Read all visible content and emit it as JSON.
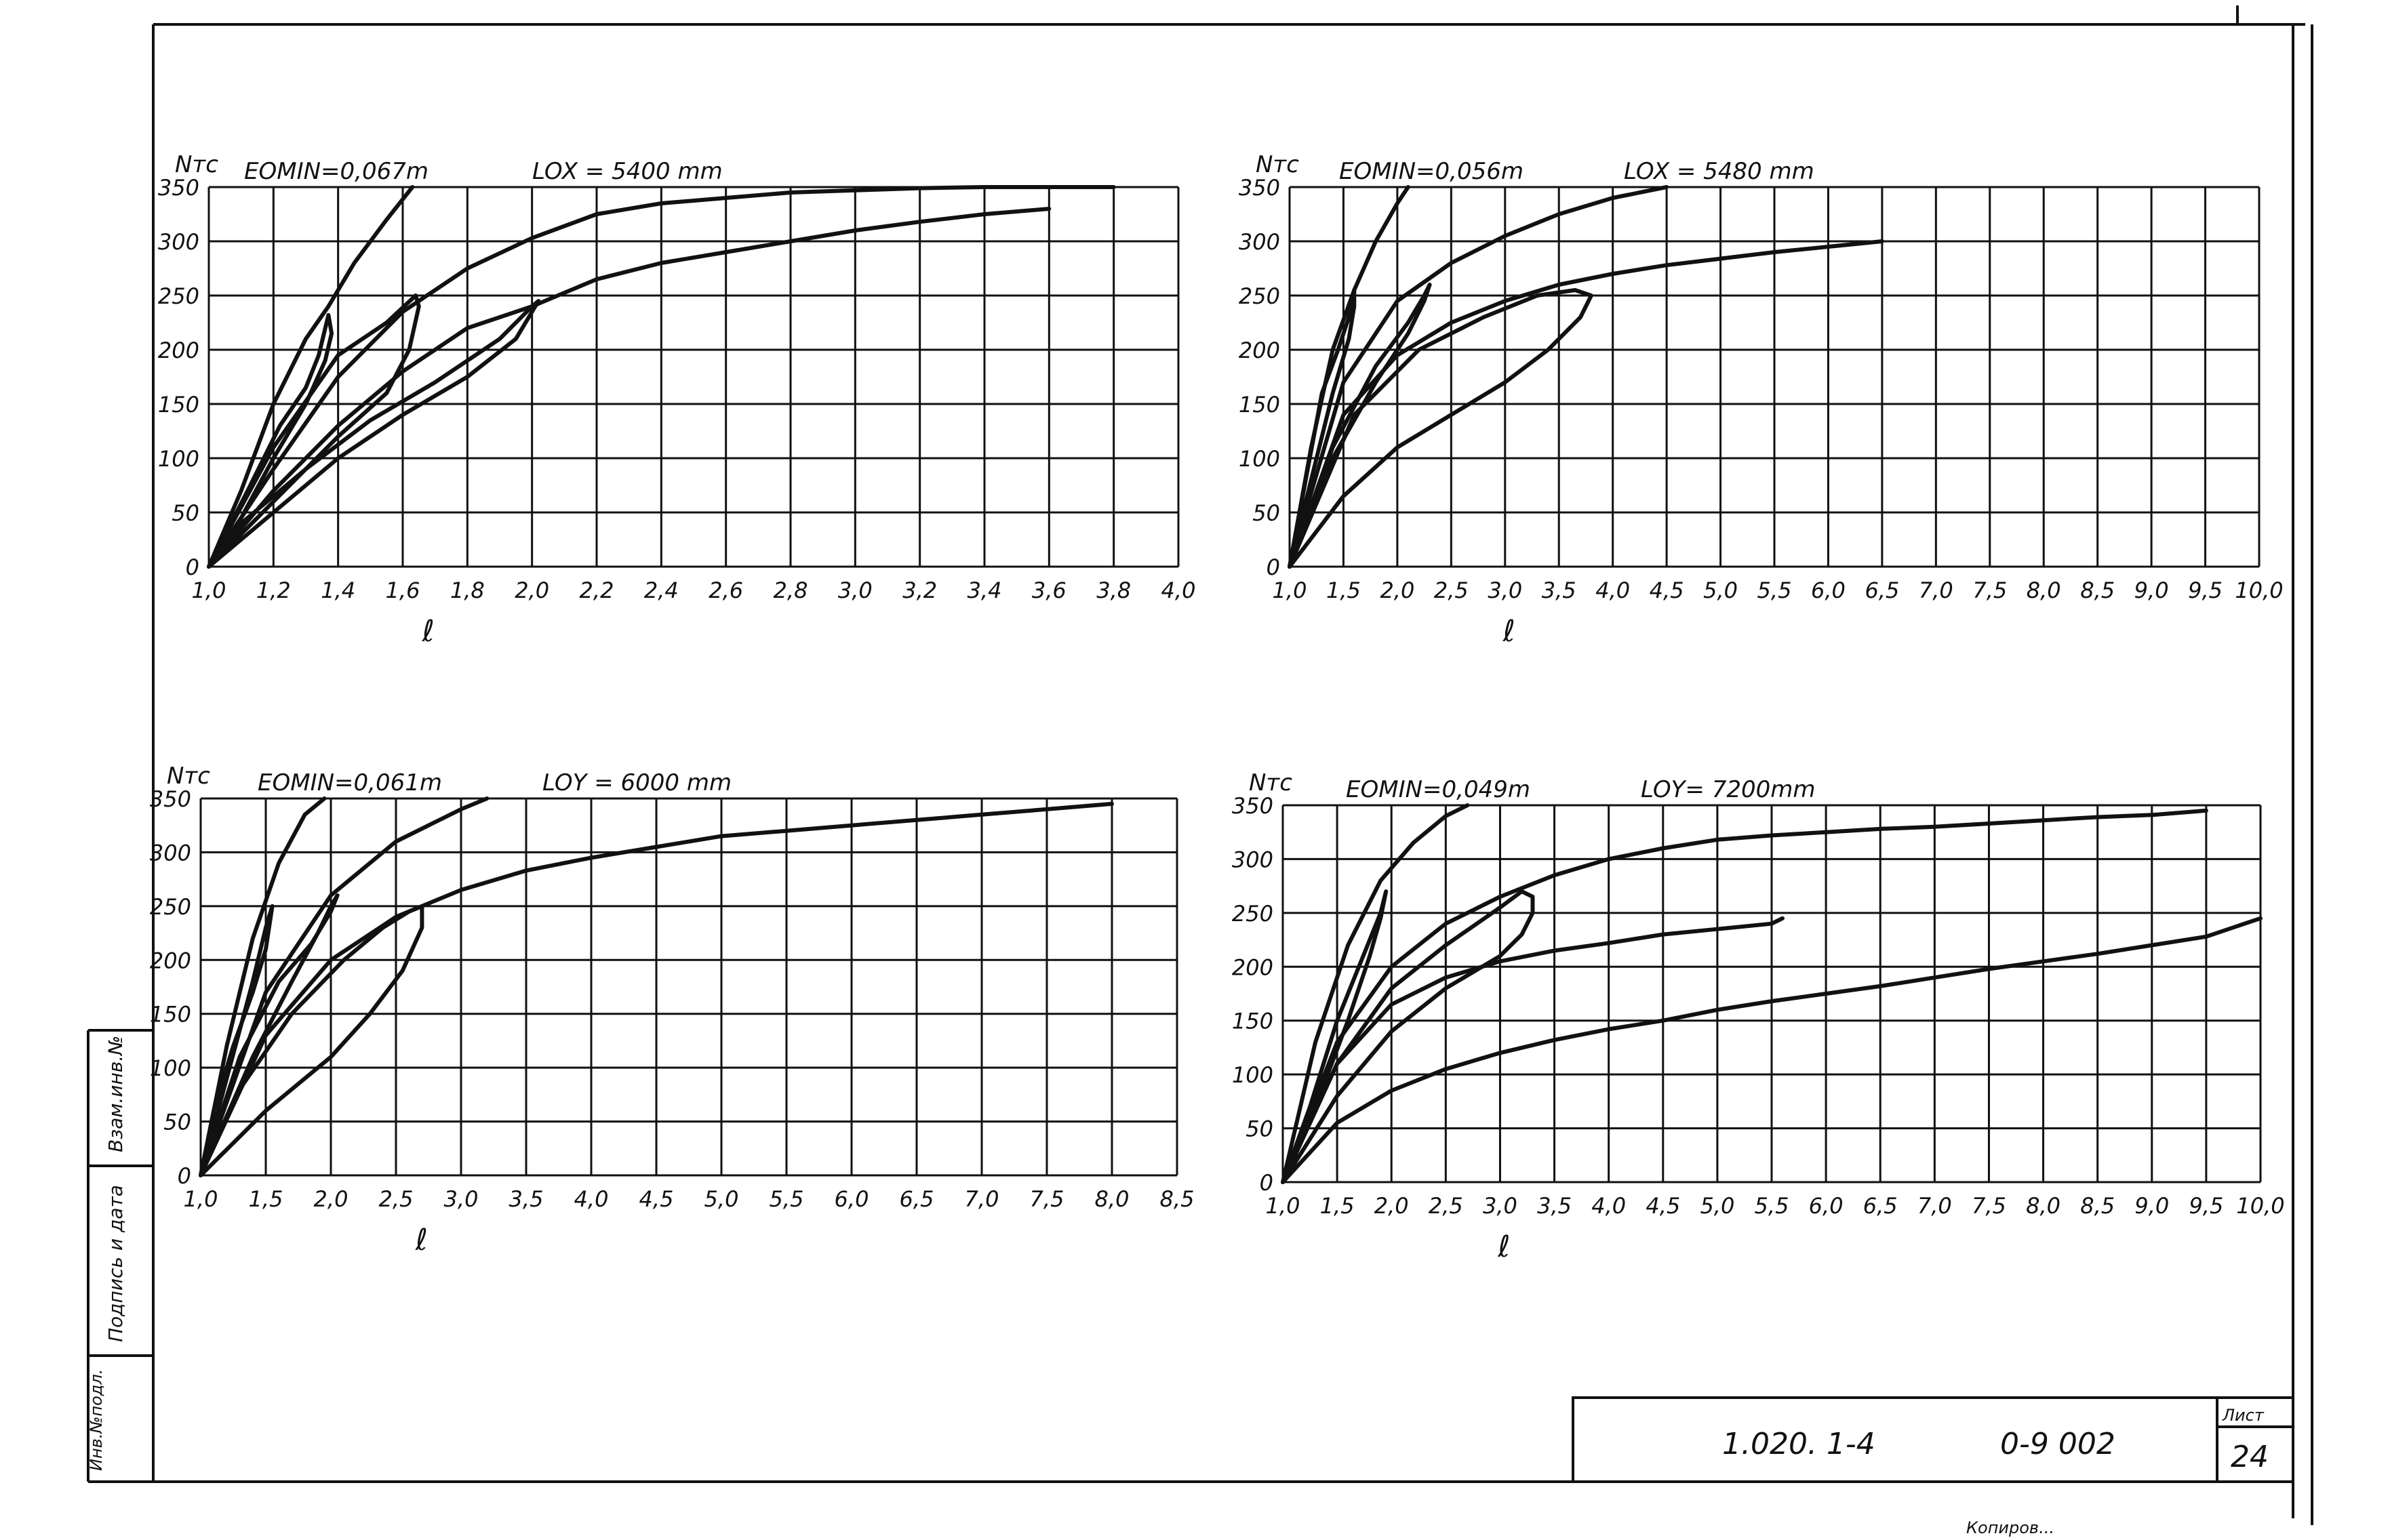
{
  "chart_data": [
    {
      "type": "line",
      "title": "",
      "ylabel": "Nтс",
      "xlabel": "ℓ",
      "annotations": [
        "EOMIN=0,067m",
        "LOX = 5400 mm"
      ],
      "x_ticks": [
        "1,0",
        "1,2",
        "1,4",
        "1,6",
        "1,8",
        "2,0",
        "2,2",
        "2,4",
        "2,6",
        "2,8",
        "3,0",
        "3,2",
        "3,4",
        "3,6",
        "3,8",
        "4,0"
      ],
      "y_ticks": [
        "0",
        "50",
        "100",
        "150",
        "200",
        "250",
        "300",
        "350"
      ],
      "xlim": [
        1.0,
        4.0
      ],
      "ylim": [
        0,
        350
      ],
      "grid": true,
      "series": [
        {
          "x": [
            1.0,
            1.1,
            1.2,
            1.3,
            1.37,
            1.45,
            1.55,
            1.63
          ],
          "y": [
            0,
            70,
            150,
            210,
            240,
            280,
            320,
            350
          ]
        },
        {
          "x": [
            1.0,
            1.1,
            1.2,
            1.3,
            1.36,
            1.38,
            1.37,
            1.34,
            1.3,
            1.22,
            1.12,
            1.0
          ],
          "y": [
            0,
            45,
            100,
            150,
            190,
            215,
            232,
            195,
            165,
            130,
            70,
            0
          ]
        },
        {
          "x": [
            1.0,
            1.2,
            1.4,
            1.6,
            1.8,
            2.0,
            2.2,
            2.4,
            2.6,
            2.8,
            3.0,
            3.2,
            3.4,
            3.6,
            3.8
          ],
          "y": [
            0,
            90,
            175,
            235,
            275,
            303,
            325,
            335,
            340,
            345,
            347,
            349,
            350,
            350,
            350
          ]
        },
        {
          "x": [
            1.0,
            1.2,
            1.4,
            1.55,
            1.62,
            1.65,
            1.64,
            1.55,
            1.4,
            1.2,
            1.0
          ],
          "y": [
            0,
            60,
            120,
            160,
            200,
            240,
            250,
            225,
            195,
            110,
            0
          ]
        },
        {
          "x": [
            1.0,
            1.2,
            1.4,
            1.6,
            1.8,
            2.0,
            2.2,
            2.4,
            2.6,
            2.8,
            3.0,
            3.2,
            3.4,
            3.6
          ],
          "y": [
            0,
            70,
            130,
            180,
            220,
            240,
            265,
            280,
            290,
            300,
            310,
            318,
            325,
            330
          ]
        },
        {
          "x": [
            1.0,
            1.2,
            1.4,
            1.6,
            1.8,
            1.95,
            2.0,
            2.02,
            2.0,
            1.9,
            1.7,
            1.5,
            1.3,
            1.1,
            1.0
          ],
          "y": [
            0,
            50,
            100,
            140,
            175,
            210,
            235,
            245,
            240,
            210,
            170,
            135,
            90,
            40,
            0
          ]
        }
      ]
    },
    {
      "type": "line",
      "title": "",
      "ylabel": "Nтс",
      "xlabel": "ℓ",
      "annotations": [
        "EOMIN=0,056m",
        "LOX = 5480 mm"
      ],
      "x_ticks": [
        "1,0",
        "1,5",
        "2,0",
        "2,5",
        "3,0",
        "3,5",
        "4,0",
        "4,5",
        "5,0",
        "5,5",
        "6,0",
        "6,5",
        "7,0",
        "7,5",
        "8,0",
        "8,5",
        "9,0",
        "9,5",
        "10,0"
      ],
      "y_ticks": [
        "0",
        "50",
        "100",
        "150",
        "200",
        "250",
        "300",
        "350"
      ],
      "xlim": [
        1.0,
        10.0
      ],
      "ylim": [
        0,
        350
      ],
      "grid": true,
      "series": [
        {
          "x": [
            1.0,
            1.2,
            1.4,
            1.6,
            1.8,
            2.0,
            2.1
          ],
          "y": [
            0,
            110,
            200,
            255,
            300,
            335,
            350
          ]
        },
        {
          "x": [
            1.0,
            1.2,
            1.4,
            1.55,
            1.6,
            1.6,
            1.55,
            1.45,
            1.3,
            1.15,
            1.0
          ],
          "y": [
            0,
            80,
            160,
            210,
            240,
            255,
            230,
            200,
            160,
            80,
            0
          ]
        },
        {
          "x": [
            1.0,
            1.5,
            2.0,
            2.5,
            3.0,
            3.5,
            4.0,
            4.5
          ],
          "y": [
            0,
            170,
            245,
            280,
            305,
            325,
            340,
            350
          ]
        },
        {
          "x": [
            1.0,
            1.4,
            1.8,
            2.1,
            2.25,
            2.3,
            2.25,
            2.1,
            1.8,
            1.4,
            1.0
          ],
          "y": [
            0,
            100,
            170,
            215,
            245,
            260,
            250,
            225,
            185,
            110,
            0
          ]
        },
        {
          "x": [
            1.0,
            1.5,
            2.0,
            2.5,
            3.0,
            3.5,
            4.0,
            4.5,
            5.0,
            5.5,
            6.0,
            6.5
          ],
          "y": [
            0,
            140,
            195,
            225,
            245,
            260,
            270,
            278,
            284,
            290,
            295,
            300
          ]
        },
        {
          "x": [
            1.0,
            1.5,
            2.0,
            2.5,
            3.0,
            3.4,
            3.7,
            3.8,
            3.65,
            3.3,
            2.8,
            2.2,
            1.6,
            1.0
          ],
          "y": [
            0,
            65,
            110,
            140,
            170,
            200,
            230,
            250,
            255,
            250,
            230,
            200,
            140,
            0
          ]
        }
      ]
    },
    {
      "type": "line",
      "title": "",
      "ylabel": "Nтс",
      "xlabel": "ℓ",
      "annotations": [
        "EOMIN=0,061m",
        "LOY = 6000 mm"
      ],
      "x_ticks": [
        "1,0",
        "1,5",
        "2,0",
        "2,5",
        "3,0",
        "3,5",
        "4,0",
        "4,5",
        "5,0",
        "5,5",
        "6,0",
        "6,5",
        "7,0",
        "7,5",
        "8,0",
        "8,5"
      ],
      "y_ticks": [
        "0",
        "50",
        "100",
        "150",
        "200",
        "250",
        "300",
        "350"
      ],
      "xlim": [
        1.0,
        8.5
      ],
      "ylim": [
        0,
        350
      ],
      "grid": true,
      "series": [
        {
          "x": [
            1.0,
            1.2,
            1.4,
            1.6,
            1.8,
            1.95
          ],
          "y": [
            0,
            120,
            220,
            290,
            335,
            350
          ]
        },
        {
          "x": [
            1.0,
            1.2,
            1.4,
            1.5,
            1.55,
            1.5,
            1.4,
            1.25,
            1.1,
            1.0
          ],
          "y": [
            0,
            90,
            180,
            230,
            250,
            210,
            170,
            120,
            60,
            0
          ]
        },
        {
          "x": [
            1.0,
            1.5,
            2.0,
            2.5,
            3.0,
            3.2
          ],
          "y": [
            0,
            170,
            260,
            310,
            340,
            350
          ]
        },
        {
          "x": [
            1.0,
            1.4,
            1.7,
            1.9,
            2.0,
            2.05,
            2.0,
            1.85,
            1.6,
            1.3,
            1.0
          ],
          "y": [
            0,
            110,
            180,
            225,
            250,
            260,
            245,
            215,
            180,
            110,
            0
          ]
        },
        {
          "x": [
            1.0,
            1.5,
            2.0,
            2.5,
            3.0,
            3.5,
            4.0,
            4.5,
            5.0,
            5.5,
            6.0,
            6.5,
            7.0,
            7.5,
            8.0
          ],
          "y": [
            0,
            130,
            200,
            240,
            265,
            283,
            295,
            305,
            315,
            320,
            325,
            330,
            335,
            340,
            345
          ]
        },
        {
          "x": [
            1.0,
            1.5,
            2.0,
            2.3,
            2.55,
            2.7,
            2.7,
            2.6,
            2.4,
            2.1,
            1.7,
            1.3,
            1.0
          ],
          "y": [
            0,
            60,
            110,
            150,
            190,
            230,
            250,
            245,
            230,
            200,
            150,
            80,
            0
          ]
        }
      ]
    },
    {
      "type": "line",
      "title": "",
      "ylabel": "Nтс",
      "xlabel": "ℓ",
      "annotations": [
        "EOMIN=0,049m",
        "LOY= 7200mm"
      ],
      "x_ticks": [
        "1,0",
        "1,5",
        "2,0",
        "2,5",
        "3,0",
        "3,5",
        "4,0",
        "4,5",
        "5,0",
        "5,5",
        "6,0",
        "6,5",
        "7,0",
        "7,5",
        "8,0",
        "8,5",
        "9,0",
        "9,5",
        "10,0"
      ],
      "y_ticks": [
        "0",
        "50",
        "100",
        "150",
        "200",
        "250",
        "300",
        "350"
      ],
      "xlim": [
        1.0,
        10.0
      ],
      "ylim": [
        0,
        350
      ],
      "grid": true,
      "series": [
        {
          "x": [
            1.0,
            1.3,
            1.6,
            1.9,
            2.2,
            2.5,
            2.7
          ],
          "y": [
            0,
            130,
            220,
            280,
            315,
            340,
            350
          ]
        },
        {
          "x": [
            1.0,
            1.3,
            1.6,
            1.8,
            1.9,
            1.95,
            1.9,
            1.7,
            1.5,
            1.25,
            1.0
          ],
          "y": [
            0,
            70,
            150,
            210,
            245,
            270,
            250,
            200,
            150,
            70,
            0
          ]
        },
        {
          "x": [
            1.0,
            1.5,
            2.0,
            2.5,
            3.0,
            3.5,
            4.0,
            4.5,
            5.0,
            5.5,
            6.0,
            6.5,
            7.0,
            7.5,
            8.0,
            8.5,
            9.0,
            9.5
          ],
          "y": [
            0,
            130,
            200,
            240,
            265,
            285,
            300,
            310,
            318,
            322,
            325,
            328,
            330,
            333,
            336,
            339,
            341,
            345
          ]
        },
        {
          "x": [
            1.0,
            1.5,
            2.0,
            2.5,
            3.0,
            3.2,
            3.3,
            3.3,
            3.2,
            3.0,
            2.5,
            2.0,
            1.5,
            1.0
          ],
          "y": [
            0,
            80,
            140,
            180,
            210,
            230,
            250,
            265,
            270,
            255,
            220,
            180,
            110,
            0
          ]
        },
        {
          "x": [
            1.0,
            1.5,
            2.0,
            2.5,
            3.0,
            3.5,
            4.0,
            4.5,
            5.0,
            5.5,
            5.6
          ],
          "y": [
            0,
            110,
            165,
            190,
            205,
            215,
            222,
            230,
            235,
            240,
            245
          ]
        },
        {
          "x": [
            1.0,
            1.5,
            2.0,
            2.5,
            3.0,
            3.5,
            4.0,
            4.5,
            5.0,
            5.5,
            6.0,
            6.5,
            7.0,
            7.5,
            8.0,
            8.5,
            9.0,
            9.5,
            10.0
          ],
          "y": [
            0,
            55,
            85,
            105,
            120,
            132,
            142,
            150,
            160,
            168,
            175,
            182,
            190,
            198,
            205,
            212,
            220,
            228,
            245
          ]
        }
      ]
    }
  ],
  "stamp": {
    "designation": "1.020. 1-4",
    "code": "0-9 002",
    "sheet_label": "Лист",
    "sheet_number": "24"
  },
  "side_strip": {
    "labels": [
      "Взам.инв.№",
      "Подпись и дата",
      "Инв.№подл."
    ]
  },
  "bottom_note": "Копиров..."
}
